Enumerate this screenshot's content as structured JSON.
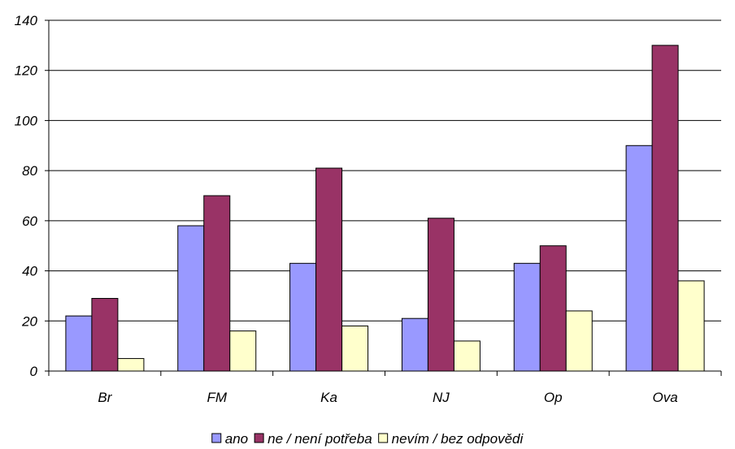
{
  "chart_data": {
    "type": "bar",
    "categories": [
      "Br",
      "FM",
      "Ka",
      "NJ",
      "Op",
      "Ova"
    ],
    "series": [
      {
        "name": "ano",
        "color": "#9999ff",
        "values": [
          22,
          58,
          43,
          21,
          43,
          90
        ]
      },
      {
        "name": "ne / není potřeba",
        "color": "#993366",
        "values": [
          29,
          70,
          81,
          61,
          50,
          130
        ]
      },
      {
        "name": "nevím / bez odpovědi",
        "color": "#ffffcc",
        "values": [
          5,
          16,
          18,
          12,
          24,
          36
        ]
      }
    ],
    "ylim": [
      0,
      140
    ],
    "yticks": [
      0,
      20,
      40,
      60,
      80,
      100,
      120,
      140
    ],
    "grid": true,
    "legend_position": "bottom"
  }
}
